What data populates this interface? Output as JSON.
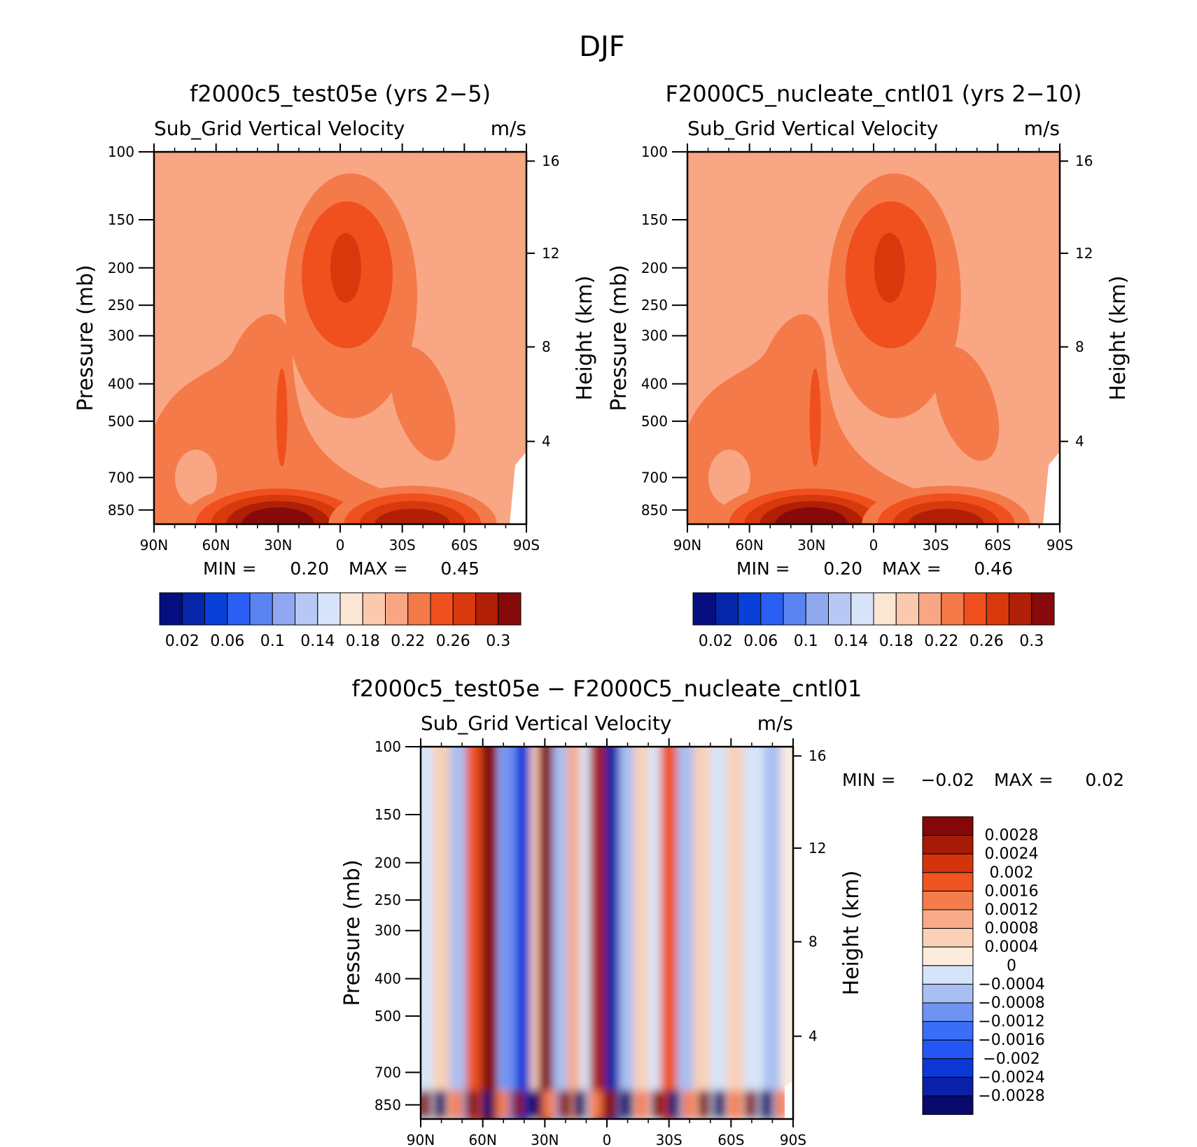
{
  "page_title": "DJF",
  "colors": {
    "frame": "#000000",
    "background": "#ffffff",
    "scale_blue_red": [
      "#050f80",
      "#0526a8",
      "#0940d8",
      "#2a5ef5",
      "#5a84f2",
      "#8fa8ef",
      "#b7c8f4",
      "#d7e3f8",
      "#fbe6d4",
      "#fbc9ad",
      "#f9a684",
      "#f47a4a",
      "#f0501e",
      "#d8390c",
      "#b01f06",
      "#870a0a"
    ],
    "scale_diff": [
      "#080a6e",
      "#0b20a8",
      "#0d38d8",
      "#2455f5",
      "#3b6ef6",
      "#6f93f2",
      "#a9bff2",
      "#d6e4f9",
      "#fbecdc",
      "#fad0b6",
      "#f8ab88",
      "#f47d4d",
      "#ef531f",
      "#d4340b",
      "#a71a05",
      "#840808"
    ]
  },
  "chart_data": [
    {
      "id": "left",
      "type": "heatmap",
      "title": "f2000c5_test05e (yrs 2-5)",
      "subtitle_left": "Sub_Grid Vertical Velocity",
      "subtitle_right": "m/s",
      "xlabel": "",
      "ylabel": "Pressure (mb)",
      "y2label": "Height (km)",
      "x_ticks": [
        "90N",
        "60N",
        "30N",
        "0",
        "30S",
        "60S",
        "90S"
      ],
      "y_ticks": [
        "100",
        "150",
        "200",
        "250",
        "300",
        "400",
        "500",
        "700",
        "850"
      ],
      "y2_ticks": [
        "16",
        "12",
        "8",
        "4"
      ],
      "ylim": [
        100,
        925
      ],
      "x_range": [
        "90N",
        "90S"
      ],
      "min_label": "MIN =",
      "min": "0.20",
      "max_label": "MAX =",
      "max": "0.45",
      "colorbar_labels": [
        "0.02",
        "0.06",
        "0.1",
        "0.14",
        "0.18",
        "0.22",
        "0.26",
        "0.3"
      ],
      "background_level": "0.22",
      "field_features": [
        {
          "name": "upper-tropical-max",
          "lat": 0,
          "p": 200,
          "value": 0.3
        },
        {
          "name": "nh-midlat-plume",
          "lat": 35,
          "p": 450,
          "value": 0.26
        },
        {
          "name": "sh-midtrop-band",
          "lat": -40,
          "p": 450,
          "value": 0.26
        },
        {
          "name": "nh-surface-max",
          "lat": 30,
          "p": 910,
          "value": 0.45
        },
        {
          "name": "sh-surface-max",
          "lat": -35,
          "p": 910,
          "value": 0.38
        }
      ]
    },
    {
      "id": "right",
      "type": "heatmap",
      "title": "F2000C5_nucleate_cntl01 (yrs 2-10)",
      "subtitle_left": "Sub_Grid Vertical Velocity",
      "subtitle_right": "m/s",
      "xlabel": "",
      "ylabel": "Pressure (mb)",
      "y2label": "Height (km)",
      "x_ticks": [
        "90N",
        "60N",
        "30N",
        "0",
        "30S",
        "60S",
        "90S"
      ],
      "y_ticks": [
        "100",
        "150",
        "200",
        "250",
        "300",
        "400",
        "500",
        "700",
        "850"
      ],
      "y2_ticks": [
        "16",
        "12",
        "8",
        "4"
      ],
      "ylim": [
        100,
        925
      ],
      "x_range": [
        "90N",
        "90S"
      ],
      "min_label": "MIN =",
      "min": "0.20",
      "max_label": "MAX =",
      "max": "0.46",
      "colorbar_labels": [
        "0.02",
        "0.06",
        "0.1",
        "0.14",
        "0.18",
        "0.22",
        "0.26",
        "0.3"
      ],
      "background_level": "0.22",
      "field_features": [
        {
          "name": "upper-tropical-max",
          "lat": -5,
          "p": 200,
          "value": 0.3
        },
        {
          "name": "nh-midlat-plume",
          "lat": 35,
          "p": 450,
          "value": 0.26
        },
        {
          "name": "sh-midtrop-band",
          "lat": -45,
          "p": 450,
          "value": 0.26
        },
        {
          "name": "nh-surface-max",
          "lat": 30,
          "p": 910,
          "value": 0.46
        },
        {
          "name": "sh-surface-max",
          "lat": -35,
          "p": 910,
          "value": 0.38
        }
      ]
    },
    {
      "id": "diff",
      "type": "heatmap",
      "title": "f2000c5_test05e - F2000C5_nucleate_cntl01",
      "subtitle_left": "Sub_Grid Vertical Velocity",
      "subtitle_right": "m/s",
      "xlabel": "",
      "ylabel": "Pressure (mb)",
      "y2label": "Height (km)",
      "x_ticks": [
        "90N",
        "60N",
        "30N",
        "0",
        "30S",
        "60S",
        "90S"
      ],
      "y_ticks": [
        "100",
        "150",
        "200",
        "250",
        "300",
        "400",
        "500",
        "700",
        "850"
      ],
      "y2_ticks": [
        "16",
        "12",
        "8",
        "4"
      ],
      "ylim": [
        100,
        925
      ],
      "x_range": [
        "90N",
        "90S"
      ],
      "min_label": "MIN =",
      "min": "-0.02",
      "max_label": "MAX =",
      "max": "0.02",
      "colorbar_labels": [
        "0.0028",
        "0.0024",
        "0.002",
        "0.0016",
        "0.0012",
        "0.0008",
        "0.0004",
        "0",
        "-0.0004",
        "-0.0008",
        "-0.0012",
        "-0.0016",
        "-0.002",
        "-0.0024",
        "-0.0028"
      ],
      "bands": [
        {
          "lat": 86,
          "value": -0.0002
        },
        {
          "lat": 80,
          "value": 0.0004
        },
        {
          "lat": 72,
          "value": -0.0006
        },
        {
          "lat": 64,
          "value": 0.0016
        },
        {
          "lat": 57,
          "value": 0.003
        },
        {
          "lat": 48,
          "value": -0.0012
        },
        {
          "lat": 40,
          "value": -0.0024
        },
        {
          "lat": 33,
          "value": 0.0004
        },
        {
          "lat": 29,
          "value": 0.0028
        },
        {
          "lat": 22,
          "value": -0.0006
        },
        {
          "lat": 15,
          "value": 0.0008
        },
        {
          "lat": 9,
          "value": -0.0004
        },
        {
          "lat": 4,
          "value": 0.0024
        },
        {
          "lat": -3,
          "value": -0.0028
        },
        {
          "lat": -10,
          "value": -0.0006
        },
        {
          "lat": -17,
          "value": 0.0006
        },
        {
          "lat": -24,
          "value": -0.0004
        },
        {
          "lat": -30,
          "value": 0.0016
        },
        {
          "lat": -38,
          "value": -0.0008
        },
        {
          "lat": -46,
          "value": 0.0004
        },
        {
          "lat": -54,
          "value": -0.0003
        },
        {
          "lat": -62,
          "value": 0.0006
        },
        {
          "lat": -70,
          "value": -0.0004
        },
        {
          "lat": -80,
          "value": -0.0008
        },
        {
          "lat": -88,
          "value": 0.0002
        }
      ]
    }
  ]
}
